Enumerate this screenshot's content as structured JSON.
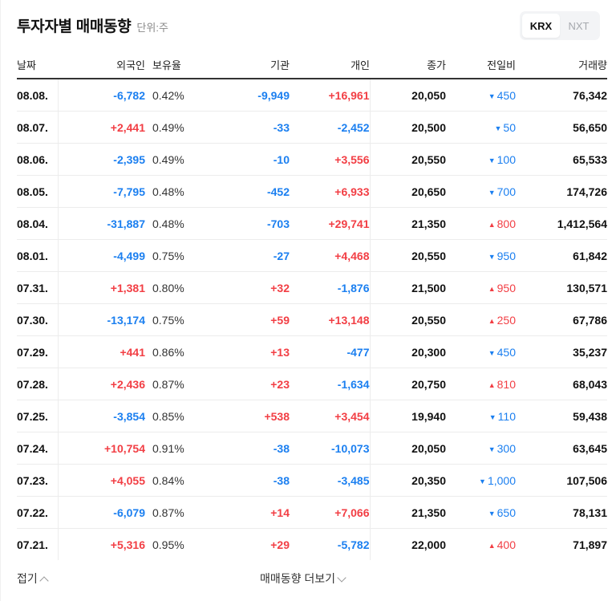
{
  "header": {
    "title": "투자자별 매매동향",
    "unit": "단위:주"
  },
  "market_toggle": {
    "options": [
      {
        "label": "KRX",
        "active": true
      },
      {
        "label": "NXT",
        "active": false
      }
    ]
  },
  "table": {
    "columns": [
      "날짜",
      "외국인",
      "보유율",
      "기관",
      "개인",
      "종가",
      "전일비",
      "거래량"
    ],
    "rows": [
      {
        "date": "08.08.",
        "foreign": "-6,782",
        "holding": "0.42%",
        "institution": "-9,949",
        "individual": "+16,961",
        "close": "20,050",
        "change_dir": "down",
        "change": "450",
        "volume": "76,342"
      },
      {
        "date": "08.07.",
        "foreign": "+2,441",
        "holding": "0.49%",
        "institution": "-33",
        "individual": "-2,452",
        "close": "20,500",
        "change_dir": "down",
        "change": "50",
        "volume": "56,650"
      },
      {
        "date": "08.06.",
        "foreign": "-2,395",
        "holding": "0.49%",
        "institution": "-10",
        "individual": "+3,556",
        "close": "20,550",
        "change_dir": "down",
        "change": "100",
        "volume": "65,533"
      },
      {
        "date": "08.05.",
        "foreign": "-7,795",
        "holding": "0.48%",
        "institution": "-452",
        "individual": "+6,933",
        "close": "20,650",
        "change_dir": "down",
        "change": "700",
        "volume": "174,726"
      },
      {
        "date": "08.04.",
        "foreign": "-31,887",
        "holding": "0.48%",
        "institution": "-703",
        "individual": "+29,741",
        "close": "21,350",
        "change_dir": "up",
        "change": "800",
        "volume": "1,412,564"
      },
      {
        "date": "08.01.",
        "foreign": "-4,499",
        "holding": "0.75%",
        "institution": "-27",
        "individual": "+4,468",
        "close": "20,550",
        "change_dir": "down",
        "change": "950",
        "volume": "61,842"
      },
      {
        "date": "07.31.",
        "foreign": "+1,381",
        "holding": "0.80%",
        "institution": "+32",
        "individual": "-1,876",
        "close": "21,500",
        "change_dir": "up",
        "change": "950",
        "volume": "130,571"
      },
      {
        "date": "07.30.",
        "foreign": "-13,174",
        "holding": "0.75%",
        "institution": "+59",
        "individual": "+13,148",
        "close": "20,550",
        "change_dir": "up",
        "change": "250",
        "volume": "67,786"
      },
      {
        "date": "07.29.",
        "foreign": "+441",
        "holding": "0.86%",
        "institution": "+13",
        "individual": "-477",
        "close": "20,300",
        "change_dir": "down",
        "change": "450",
        "volume": "35,237"
      },
      {
        "date": "07.28.",
        "foreign": "+2,436",
        "holding": "0.87%",
        "institution": "+23",
        "individual": "-1,634",
        "close": "20,750",
        "change_dir": "up",
        "change": "810",
        "volume": "68,043"
      },
      {
        "date": "07.25.",
        "foreign": "-3,854",
        "holding": "0.85%",
        "institution": "+538",
        "individual": "+3,454",
        "close": "19,940",
        "change_dir": "down",
        "change": "110",
        "volume": "59,438"
      },
      {
        "date": "07.24.",
        "foreign": "+10,754",
        "holding": "0.91%",
        "institution": "-38",
        "individual": "-10,073",
        "close": "20,050",
        "change_dir": "down",
        "change": "300",
        "volume": "63,645"
      },
      {
        "date": "07.23.",
        "foreign": "+4,055",
        "holding": "0.84%",
        "institution": "-38",
        "individual": "-3,485",
        "close": "20,350",
        "change_dir": "down",
        "change": "1,000",
        "volume": "107,506"
      },
      {
        "date": "07.22.",
        "foreign": "-6,079",
        "holding": "0.87%",
        "institution": "+14",
        "individual": "+7,066",
        "close": "21,350",
        "change_dir": "down",
        "change": "650",
        "volume": "78,131"
      },
      {
        "date": "07.21.",
        "foreign": "+5,316",
        "holding": "0.95%",
        "institution": "+29",
        "individual": "-5,782",
        "close": "22,000",
        "change_dir": "up",
        "change": "400",
        "volume": "71,897"
      }
    ]
  },
  "footer": {
    "fold_label": "접기",
    "more_label": "매매동향 더보기"
  },
  "colors": {
    "up": "#f23e44",
    "down": "#1b7ff0",
    "text": "#111111",
    "border": "#ececec"
  }
}
